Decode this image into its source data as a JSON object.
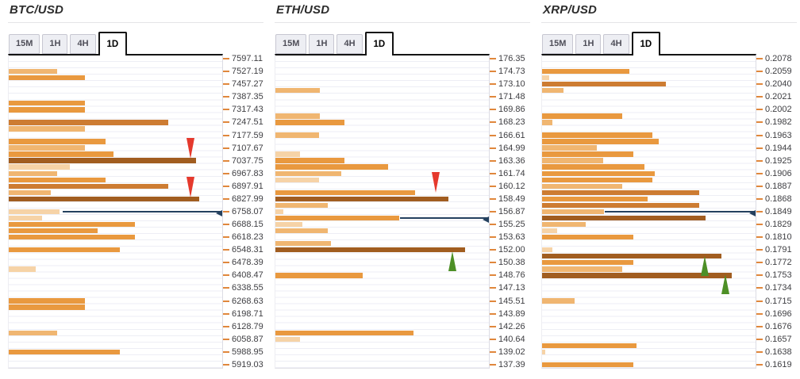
{
  "colors": {
    "background": "#ffffff",
    "shade_scale_light_to_dark": [
      "#f6d3a7",
      "#f0b671",
      "#e9993f",
      "#cd7c32",
      "#a15d20"
    ],
    "gridline": "#edeef5",
    "axis_tick": "#e0873c",
    "label_text": "#3e3e42",
    "current_price_line": "#24415f",
    "up_arrow": "#4d8f26",
    "down_arrow": "#e5392d",
    "active_tab_border": "#141414",
    "inactive_tab_bg": "#edeef3"
  },
  "panels": [
    {
      "title": "BTC/USD",
      "tabs": [
        "15M",
        "1H",
        "4H",
        "1D"
      ],
      "active_tab": "1D"
    },
    {
      "title": "ETH/USD",
      "tabs": [
        "15M",
        "1H",
        "4H",
        "1D"
      ],
      "active_tab": "1D"
    },
    {
      "title": "XRP/USD",
      "tabs": [
        "15M",
        "1H",
        "4H",
        "1D"
      ],
      "active_tab": "1D"
    }
  ],
  "chart_data": [
    {
      "pair": "BTC/USD",
      "type": "bar",
      "orientation": "horizontal",
      "timeframe": "1D",
      "note": "confluence-strength bars; slot = half-step of price axis (2 slots per label); len_pct = bar length as % of chart width; shade 1=lightest 5=darkest",
      "price_labels": [
        "7597.11",
        "7527.19",
        "7457.27",
        "7387.35",
        "7317.43",
        "7247.51",
        "7177.59",
        "7107.67",
        "7037.75",
        "6967.83",
        "6897.91",
        "6827.99",
        "6758.07",
        "6688.15",
        "6618.23",
        "6548.31",
        "6478.39",
        "6408.47",
        "6338.55",
        "6268.63",
        "6198.71",
        "6128.79",
        "6058.87",
        "5988.95",
        "5919.03"
      ],
      "bars": [
        {
          "slot": 2,
          "len_pct": 22.8,
          "shade": 2
        },
        {
          "slot": 3,
          "len_pct": 35.8,
          "shade": 3
        },
        {
          "slot": 7,
          "len_pct": 35.8,
          "shade": 3
        },
        {
          "slot": 8,
          "len_pct": 35.8,
          "shade": 3
        },
        {
          "slot": 10,
          "len_pct": 74.6,
          "shade": 4
        },
        {
          "slot": 11,
          "len_pct": 35.8,
          "shade": 2
        },
        {
          "slot": 13,
          "len_pct": 45.5,
          "shade": 3
        },
        {
          "slot": 14,
          "len_pct": 35.8,
          "shade": 2
        },
        {
          "slot": 15,
          "len_pct": 48.9,
          "shade": 3
        },
        {
          "slot": 16,
          "len_pct": 87.7,
          "shade": 5
        },
        {
          "slot": 17,
          "len_pct": 28.7,
          "shade": 1
        },
        {
          "slot": 18,
          "len_pct": 22.8,
          "shade": 2
        },
        {
          "slot": 19,
          "len_pct": 45.5,
          "shade": 3
        },
        {
          "slot": 20,
          "len_pct": 74.6,
          "shade": 4
        },
        {
          "slot": 21,
          "len_pct": 19.8,
          "shade": 2
        },
        {
          "slot": 22,
          "len_pct": 89.2,
          "shade": 5
        },
        {
          "slot": 24,
          "len_pct": 23.9,
          "shade": 1
        },
        {
          "slot": 25,
          "len_pct": 15.7,
          "shade": 1
        },
        {
          "slot": 26,
          "len_pct": 59.0,
          "shade": 3
        },
        {
          "slot": 27,
          "len_pct": 41.8,
          "shade": 3
        },
        {
          "slot": 28,
          "len_pct": 59.0,
          "shade": 3
        },
        {
          "slot": 30,
          "len_pct": 51.9,
          "shade": 3
        },
        {
          "slot": 33,
          "len_pct": 12.7,
          "shade": 1
        },
        {
          "slot": 38,
          "len_pct": 35.8,
          "shade": 3
        },
        {
          "slot": 39,
          "len_pct": 35.8,
          "shade": 3
        },
        {
          "slot": 43,
          "len_pct": 22.8,
          "shade": 2
        },
        {
          "slot": 46,
          "len_pct": 51.9,
          "shade": 3
        }
      ],
      "price_line": {
        "slot": 24,
        "start_pct": 25.2,
        "at_label": "6758.07"
      },
      "markers": [
        {
          "dir": "down",
          "x_pct": 85.0,
          "top_slot": 12.9,
          "near_label": "7037.75"
        },
        {
          "dir": "down",
          "x_pct": 85.0,
          "top_slot": 19.0,
          "near_label": "6827.99"
        }
      ]
    },
    {
      "pair": "ETH/USD",
      "type": "bar",
      "orientation": "horizontal",
      "timeframe": "1D",
      "price_labels": [
        "176.35",
        "174.73",
        "173.10",
        "171.48",
        "169.86",
        "168.23",
        "166.61",
        "164.99",
        "163.36",
        "161.74",
        "160.12",
        "158.49",
        "156.87",
        "155.25",
        "153.63",
        "152.00",
        "150.38",
        "148.76",
        "147.13",
        "145.51",
        "143.89",
        "142.26",
        "140.64",
        "139.02",
        "137.39"
      ],
      "bars": [
        {
          "slot": 5,
          "len_pct": 20.8,
          "shade": 2
        },
        {
          "slot": 9,
          "len_pct": 20.8,
          "shade": 2
        },
        {
          "slot": 10,
          "len_pct": 32.3,
          "shade": 3
        },
        {
          "slot": 12,
          "len_pct": 20.4,
          "shade": 2
        },
        {
          "slot": 15,
          "len_pct": 11.5,
          "shade": 1
        },
        {
          "slot": 16,
          "len_pct": 32.3,
          "shade": 3
        },
        {
          "slot": 17,
          "len_pct": 52.8,
          "shade": 3
        },
        {
          "slot": 18,
          "len_pct": 30.9,
          "shade": 2
        },
        {
          "slot": 19,
          "len_pct": 20.4,
          "shade": 1
        },
        {
          "slot": 21,
          "len_pct": 65.4,
          "shade": 3
        },
        {
          "slot": 22,
          "len_pct": 81.0,
          "shade": 5
        },
        {
          "slot": 23,
          "len_pct": 24.5,
          "shade": 2
        },
        {
          "slot": 24,
          "len_pct": 3.7,
          "shade": 1
        },
        {
          "slot": 25,
          "len_pct": 58.0,
          "shade": 3
        },
        {
          "slot": 26,
          "len_pct": 12.6,
          "shade": 1
        },
        {
          "slot": 27,
          "len_pct": 24.4,
          "shade": 2
        },
        {
          "slot": 29,
          "len_pct": 26.0,
          "shade": 2
        },
        {
          "slot": 30,
          "len_pct": 88.8,
          "shade": 5
        },
        {
          "slot": 34,
          "len_pct": 40.9,
          "shade": 3
        },
        {
          "slot": 43,
          "len_pct": 64.6,
          "shade": 3
        },
        {
          "slot": 44,
          "len_pct": 11.5,
          "shade": 1
        }
      ],
      "price_line": {
        "slot": 25,
        "start_pct": 58.2,
        "at_label": "155.25"
      },
      "markers": [
        {
          "dir": "down",
          "x_pct": 75.0,
          "top_slot": 18.3,
          "near_label": "158.49"
        },
        {
          "dir": "up",
          "x_pct": 83.0,
          "top_slot": 30.7,
          "near_label": "152.00"
        }
      ]
    },
    {
      "pair": "XRP/USD",
      "type": "bar",
      "orientation": "horizontal",
      "timeframe": "1D",
      "price_labels": [
        "0.2078",
        "0.2059",
        "0.2040",
        "0.2021",
        "0.2002",
        "0.1982",
        "0.1963",
        "0.1944",
        "0.1925",
        "0.1906",
        "0.1887",
        "0.1868",
        "0.1849",
        "0.1829",
        "0.1810",
        "0.1791",
        "0.1772",
        "0.1753",
        "0.1734",
        "0.1715",
        "0.1696",
        "0.1676",
        "0.1657",
        "0.1638",
        "0.1619"
      ],
      "bars": [
        {
          "slot": 2,
          "len_pct": 40.8,
          "shade": 3
        },
        {
          "slot": 3,
          "len_pct": 3.2,
          "shade": 1
        },
        {
          "slot": 4,
          "len_pct": 58.0,
          "shade": 4
        },
        {
          "slot": 5,
          "len_pct": 10.0,
          "shade": 2
        },
        {
          "slot": 9,
          "len_pct": 37.4,
          "shade": 3
        },
        {
          "slot": 10,
          "len_pct": 4.7,
          "shade": 2
        },
        {
          "slot": 12,
          "len_pct": 51.6,
          "shade": 3
        },
        {
          "slot": 13,
          "len_pct": 54.6,
          "shade": 3
        },
        {
          "slot": 14,
          "len_pct": 25.5,
          "shade": 2
        },
        {
          "slot": 15,
          "len_pct": 42.6,
          "shade": 3
        },
        {
          "slot": 16,
          "len_pct": 28.6,
          "shade": 2
        },
        {
          "slot": 17,
          "len_pct": 47.8,
          "shade": 3
        },
        {
          "slot": 18,
          "len_pct": 52.8,
          "shade": 3
        },
        {
          "slot": 19,
          "len_pct": 51.6,
          "shade": 3
        },
        {
          "slot": 20,
          "len_pct": 37.7,
          "shade": 2
        },
        {
          "slot": 21,
          "len_pct": 73.6,
          "shade": 4
        },
        {
          "slot": 22,
          "len_pct": 49.3,
          "shade": 3
        },
        {
          "slot": 23,
          "len_pct": 73.6,
          "shade": 4
        },
        {
          "slot": 24,
          "len_pct": 28.9,
          "shade": 2
        },
        {
          "slot": 25,
          "len_pct": 76.7,
          "shade": 5
        },
        {
          "slot": 26,
          "len_pct": 20.6,
          "shade": 2
        },
        {
          "slot": 27,
          "len_pct": 7.0,
          "shade": 1
        },
        {
          "slot": 28,
          "len_pct": 42.6,
          "shade": 3
        },
        {
          "slot": 30,
          "len_pct": 4.8,
          "shade": 1
        },
        {
          "slot": 31,
          "len_pct": 84.1,
          "shade": 5
        },
        {
          "slot": 32,
          "len_pct": 42.6,
          "shade": 3
        },
        {
          "slot": 33,
          "len_pct": 37.7,
          "shade": 2
        },
        {
          "slot": 34,
          "len_pct": 88.7,
          "shade": 5
        },
        {
          "slot": 38,
          "len_pct": 15.2,
          "shade": 2
        },
        {
          "slot": 45,
          "len_pct": 44.4,
          "shade": 3
        },
        {
          "slot": 46,
          "len_pct": 1.6,
          "shade": 1
        },
        {
          "slot": 48,
          "len_pct": 42.6,
          "shade": 3
        }
      ],
      "price_line": {
        "slot": 24,
        "start_pct": 29.2,
        "at_label": "0.1849"
      },
      "markers": [
        {
          "dir": "up",
          "x_pct": 76.3,
          "top_slot": 31.5,
          "near_label": "0.1772"
        },
        {
          "dir": "up",
          "x_pct": 85.8,
          "top_slot": 34.3,
          "near_label": "0.1753"
        }
      ]
    }
  ]
}
